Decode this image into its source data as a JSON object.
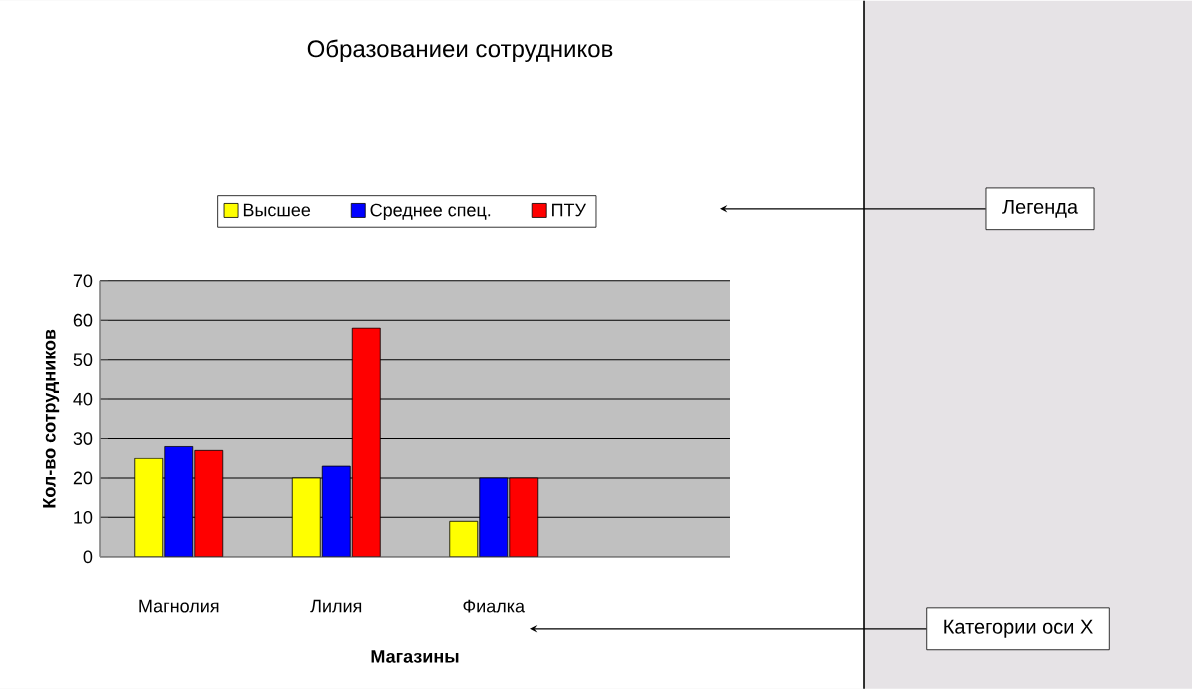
{
  "chart_data": {
    "type": "bar",
    "title": "Образованиеи сотрудников",
    "xlabel": "Магазины",
    "ylabel": "Кол-во сотрудников",
    "categories": [
      "Магнолия",
      "Лилия",
      "Фиалка",
      null
    ],
    "series": [
      {
        "name": "Высшее",
        "color": "#ffff00",
        "values": [
          25,
          20,
          9,
          null
        ]
      },
      {
        "name": "Среднее спец.",
        "color": "#0000ff",
        "values": [
          28,
          23,
          20,
          null
        ]
      },
      {
        "name": "ПТУ",
        "color": "#ff0000",
        "values": [
          27,
          58,
          20,
          null
        ]
      }
    ],
    "ylim": [
      0,
      70
    ],
    "yticks": [
      0,
      10,
      20,
      30,
      40,
      50,
      60,
      70
    ],
    "grid": "y",
    "legend": "top",
    "annotations": [
      "Легенда",
      "Категории оси X"
    ]
  }
}
